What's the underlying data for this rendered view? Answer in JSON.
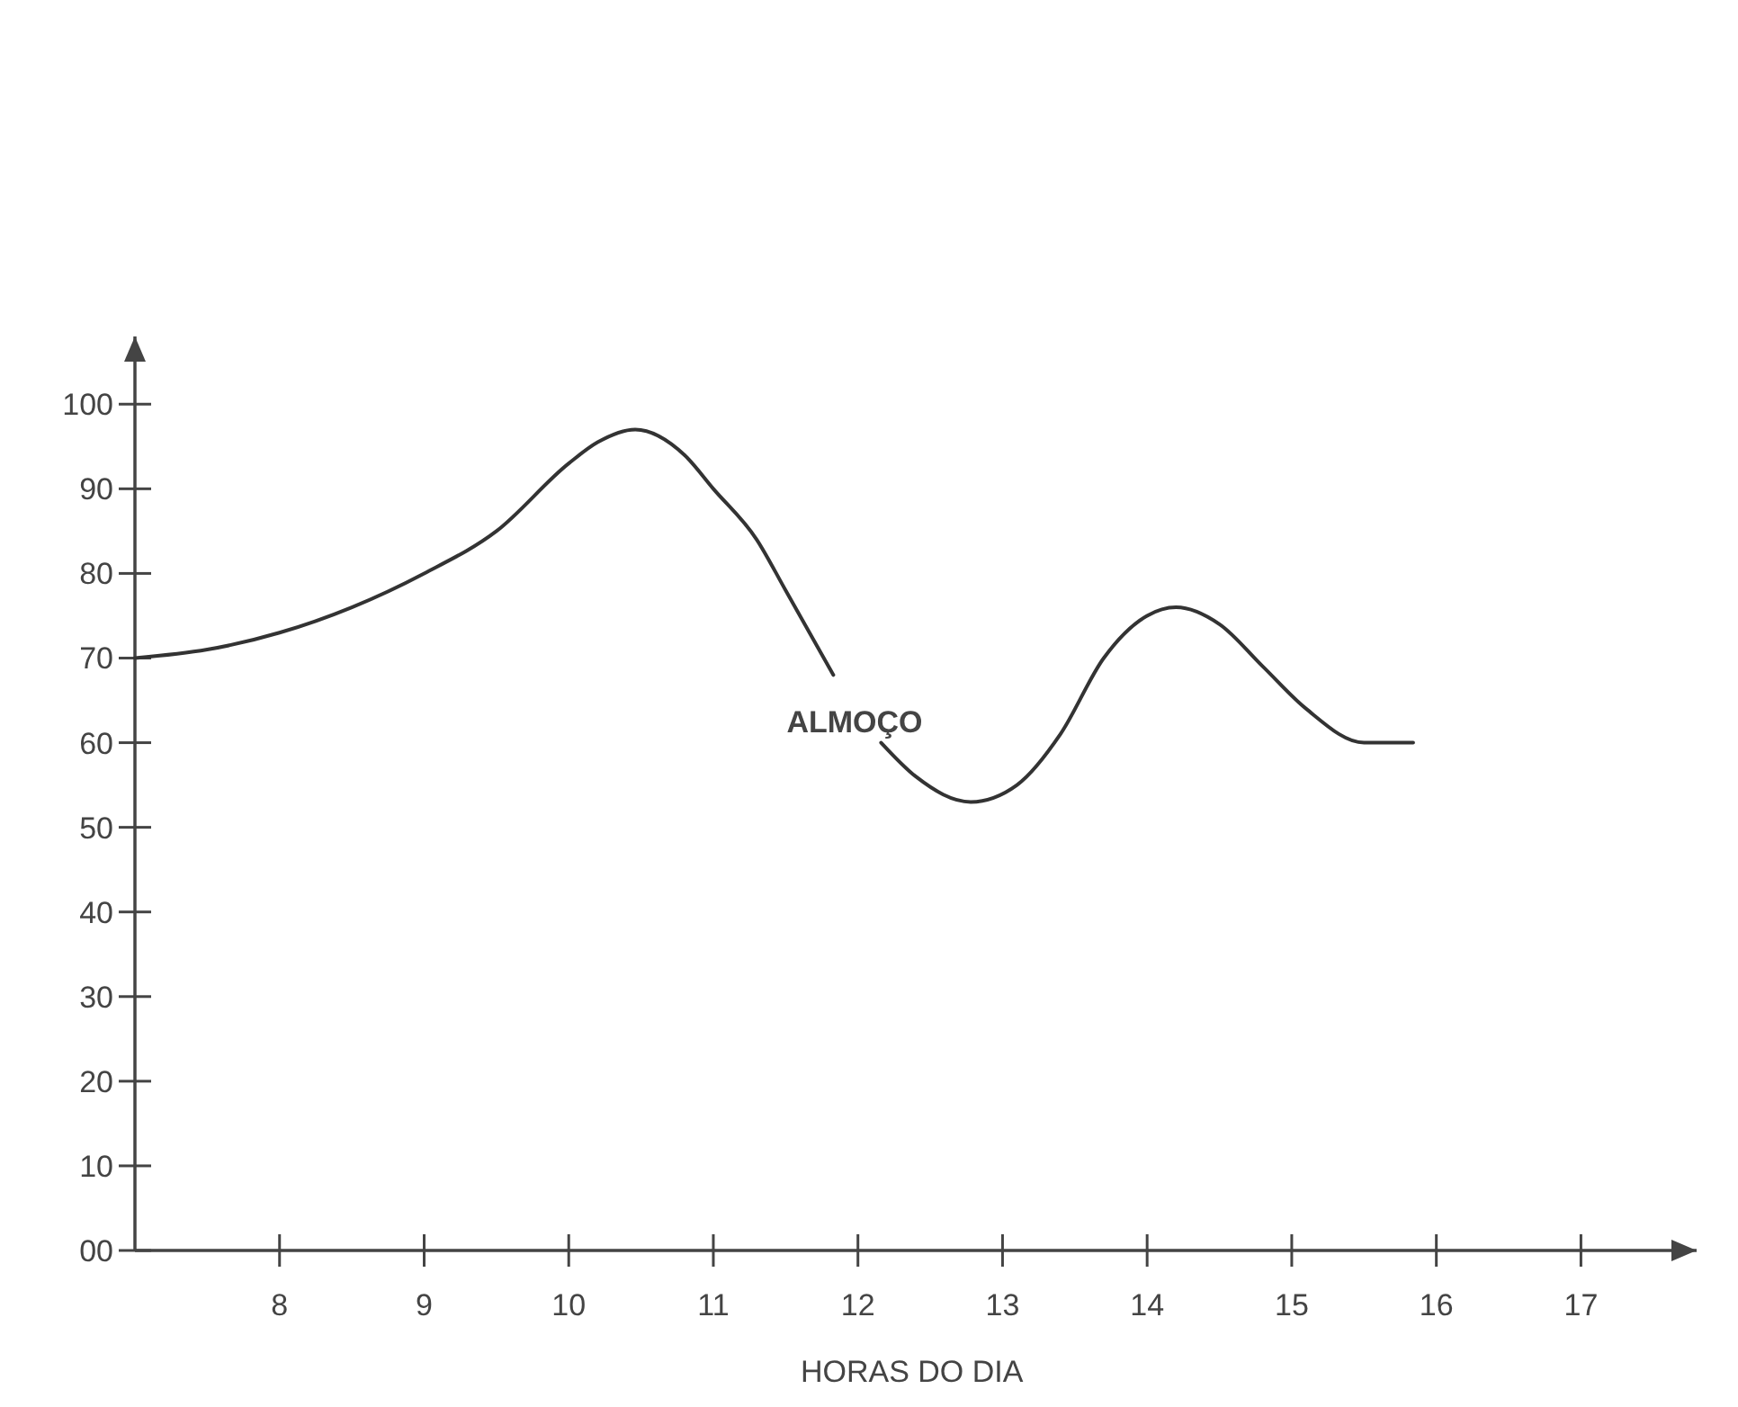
{
  "chart_data": {
    "type": "line",
    "xlabel": "HORAS DO DIA",
    "x": [
      7,
      7.5,
      8,
      8.5,
      9,
      9.5,
      10,
      10.2,
      10.46,
      10.8,
      11,
      11.3,
      11.5,
      11.83,
      12,
      12.16,
      12.4,
      12.78,
      13.1,
      13.4,
      13.7,
      14,
      14.2,
      14.5,
      14.8,
      15.1,
      15.5,
      15.84
    ],
    "series": [
      {
        "color": "#333333",
        "values": [
          70,
          71,
          73,
          76,
          80,
          85,
          93,
          95.5,
          97,
          94,
          90,
          84,
          78,
          68,
          null,
          60,
          56,
          53,
          55,
          61,
          70,
          75,
          76,
          74,
          69,
          64,
          60,
          60
        ]
      }
    ],
    "xlim": [
      7,
      17.8
    ],
    "xticks": [
      8,
      9,
      10,
      11,
      12,
      13,
      14,
      15,
      16,
      17
    ],
    "ylim": [
      0,
      108
    ],
    "yticks": [
      {
        "value": 0,
        "label": "00"
      },
      10,
      20,
      30,
      40,
      50,
      60,
      70,
      80,
      90,
      100
    ],
    "annotations": [
      "ALMOÇO"
    ],
    "grid": false,
    "marker": "none",
    "line_style": "solid"
  }
}
